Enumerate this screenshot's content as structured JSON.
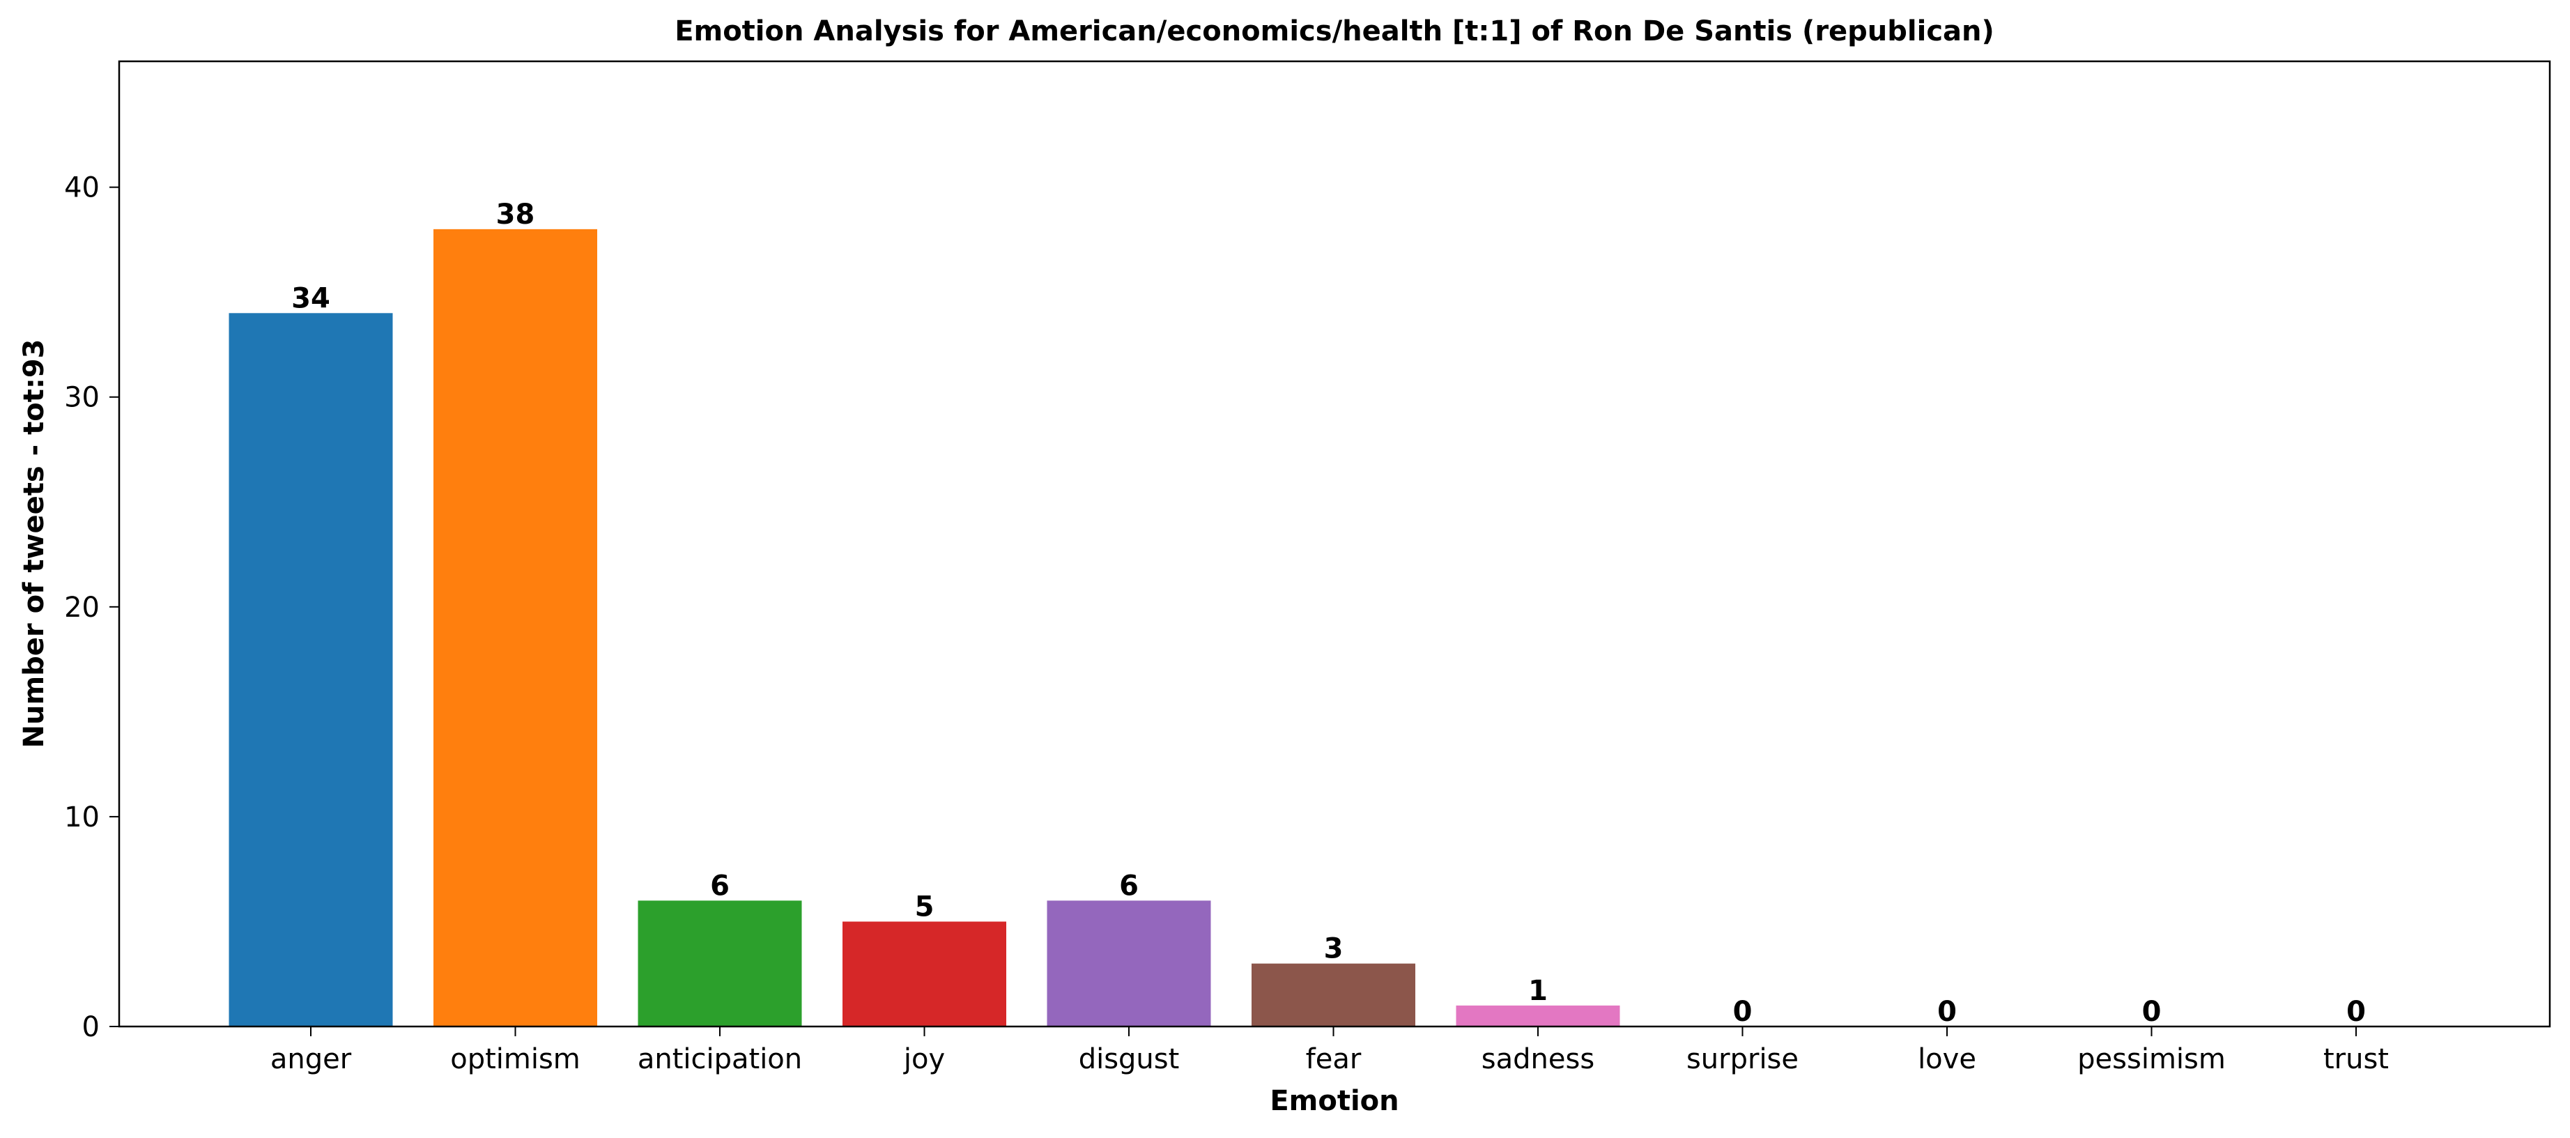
{
  "chart_data": {
    "type": "bar",
    "title": "Emotion Analysis for American/economics/health [t:1] of Ron De Santis (republican)",
    "xlabel": "Emotion",
    "ylabel": "Number of tweets - tot:93",
    "categories": [
      "anger",
      "optimism",
      "anticipation",
      "joy",
      "disgust",
      "fear",
      "sadness",
      "surprise",
      "love",
      "pessimism",
      "trust"
    ],
    "values": [
      34,
      38,
      6,
      5,
      6,
      3,
      1,
      0,
      0,
      0,
      0
    ],
    "colors": [
      "#1f77b4",
      "#ff7f0e",
      "#2ca02c",
      "#d62728",
      "#9467bd",
      "#8c564b",
      "#e377c2",
      "#7f7f7f",
      "#bcbd22",
      "#17becf",
      "#1f77b4"
    ],
    "ylim": [
      0,
      46
    ],
    "yticks": [
      0,
      10,
      20,
      30,
      40
    ],
    "grid": false,
    "legend": "none"
  }
}
